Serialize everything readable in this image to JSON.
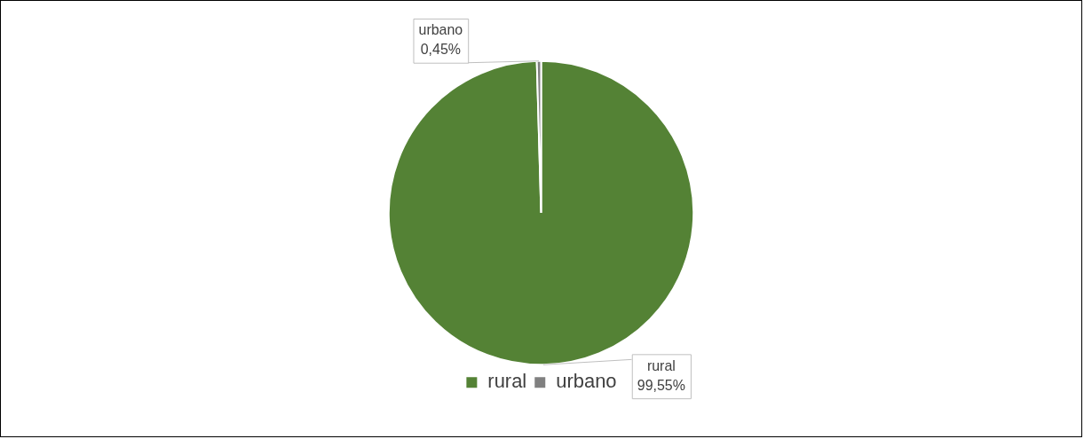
{
  "chart_data": {
    "type": "pie",
    "categories": [
      "rural",
      "urbano"
    ],
    "values": [
      99.55,
      0.45
    ],
    "colors": [
      "#548235",
      "#808080"
    ],
    "value_labels": [
      "99,55%",
      "0,45%"
    ],
    "legend": "bottom"
  }
}
